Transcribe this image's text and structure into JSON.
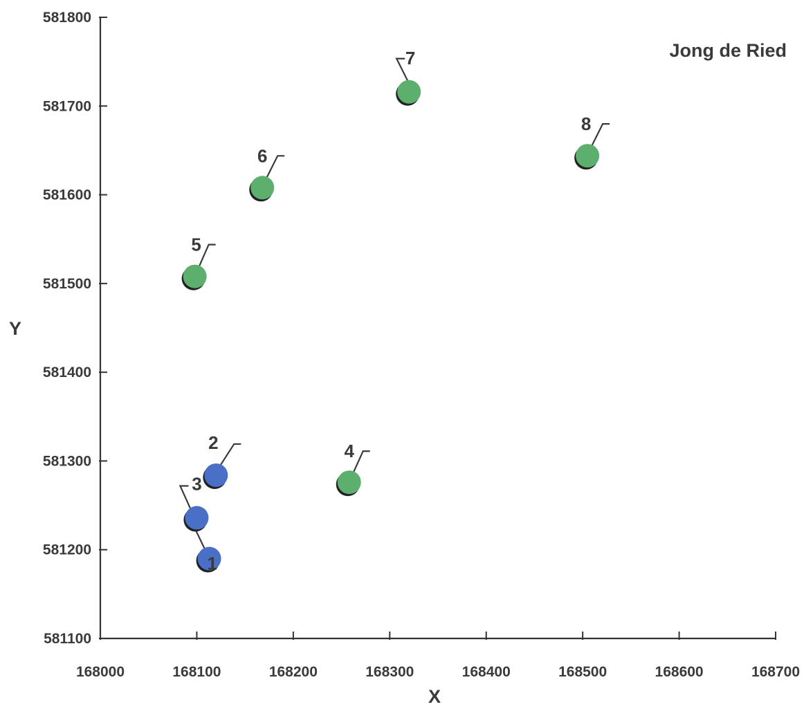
{
  "chart_data": {
    "type": "scatter",
    "title": "Jong de Ried",
    "xlabel": "X",
    "ylabel": "Y",
    "xlim": [
      168000,
      168700
    ],
    "ylim": [
      581100,
      581800
    ],
    "xticks": [
      168000,
      168100,
      168200,
      168300,
      168400,
      168500,
      168600,
      168700
    ],
    "yticks": [
      581100,
      581200,
      581300,
      581400,
      581500,
      581600,
      581700,
      581800
    ],
    "grid": false,
    "colors": {
      "blue": "#4a6fc6",
      "green": "#5daf6e",
      "axis": "#333333",
      "text": "#3a3a3a"
    },
    "points": [
      {
        "label": "1",
        "x": 168113,
        "y": 581190,
        "color": "blue"
      },
      {
        "label": "2",
        "x": 168120,
        "y": 581284,
        "color": "blue"
      },
      {
        "label": "3",
        "x": 168100,
        "y": 581236,
        "color": "blue"
      },
      {
        "label": "4",
        "x": 168258,
        "y": 581276,
        "color": "green"
      },
      {
        "label": "5",
        "x": 168098,
        "y": 581508,
        "color": "green"
      },
      {
        "label": "6",
        "x": 168168,
        "y": 581608,
        "color": "green"
      },
      {
        "label": "7",
        "x": 168320,
        "y": 581716,
        "color": "green"
      },
      {
        "label": "8",
        "x": 168505,
        "y": 581644,
        "color": "green"
      }
    ]
  }
}
